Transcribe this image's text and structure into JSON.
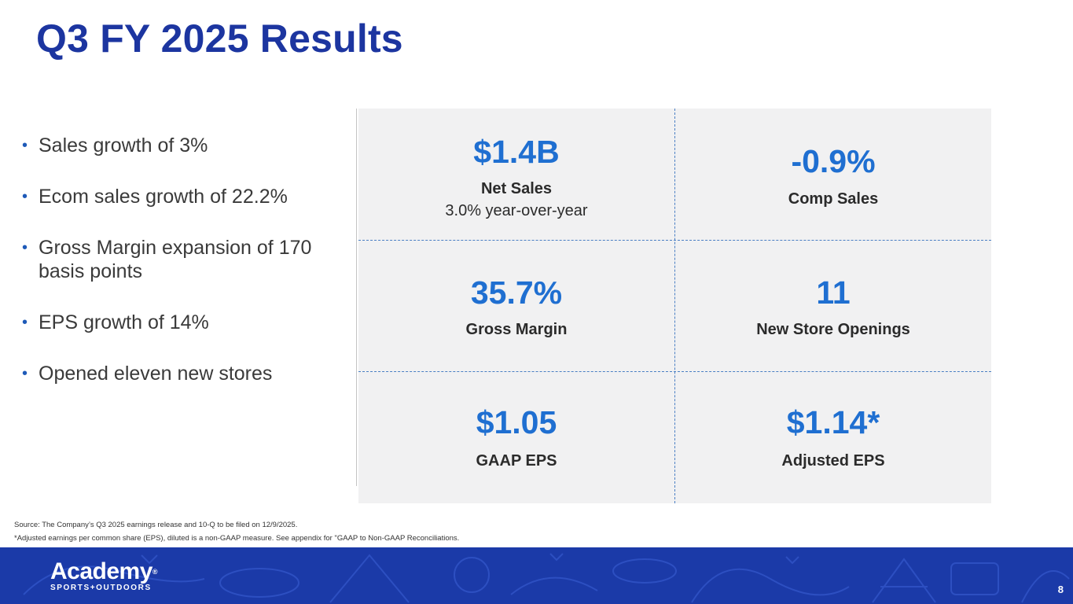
{
  "title": "Q3 FY 2025 Results",
  "bullets": [
    "Sales growth of 3%",
    "Ecom sales growth of 22.2%",
    "Gross Margin expansion of 170 basis points",
    "EPS growth of 14%",
    "Opened eleven new stores"
  ],
  "metrics": [
    {
      "value": "$1.4B",
      "label": "Net Sales",
      "sub": "3.0% year-over-year"
    },
    {
      "value": "-0.9%",
      "label": "Comp Sales"
    },
    {
      "value": "35.7%",
      "label": "Gross Margin"
    },
    {
      "value": "11",
      "label": "New Store Openings"
    },
    {
      "value": "$1.05",
      "label": "GAAP EPS"
    },
    {
      "value": "$1.14*",
      "label": "Adjusted EPS"
    }
  ],
  "footnotes": {
    "source": "Source: The Company’s Q3 2025 earnings release and 10-Q to be filed on 12/9/2025.",
    "adjusted": "*Adjusted earnings per common share (EPS), diluted is a non-GAAP measure. See appendix for \"GAAP to Non-GAAP Reconciliations."
  },
  "logo": {
    "main": "Academy",
    "reg": "®",
    "sub": "SPORTS+OUTDOORS"
  },
  "page_number": "8",
  "colors": {
    "title": "#1c35a0",
    "metric_value": "#1f6fd1",
    "banner": "#1b3aa8",
    "panel": "#f1f1f2"
  }
}
